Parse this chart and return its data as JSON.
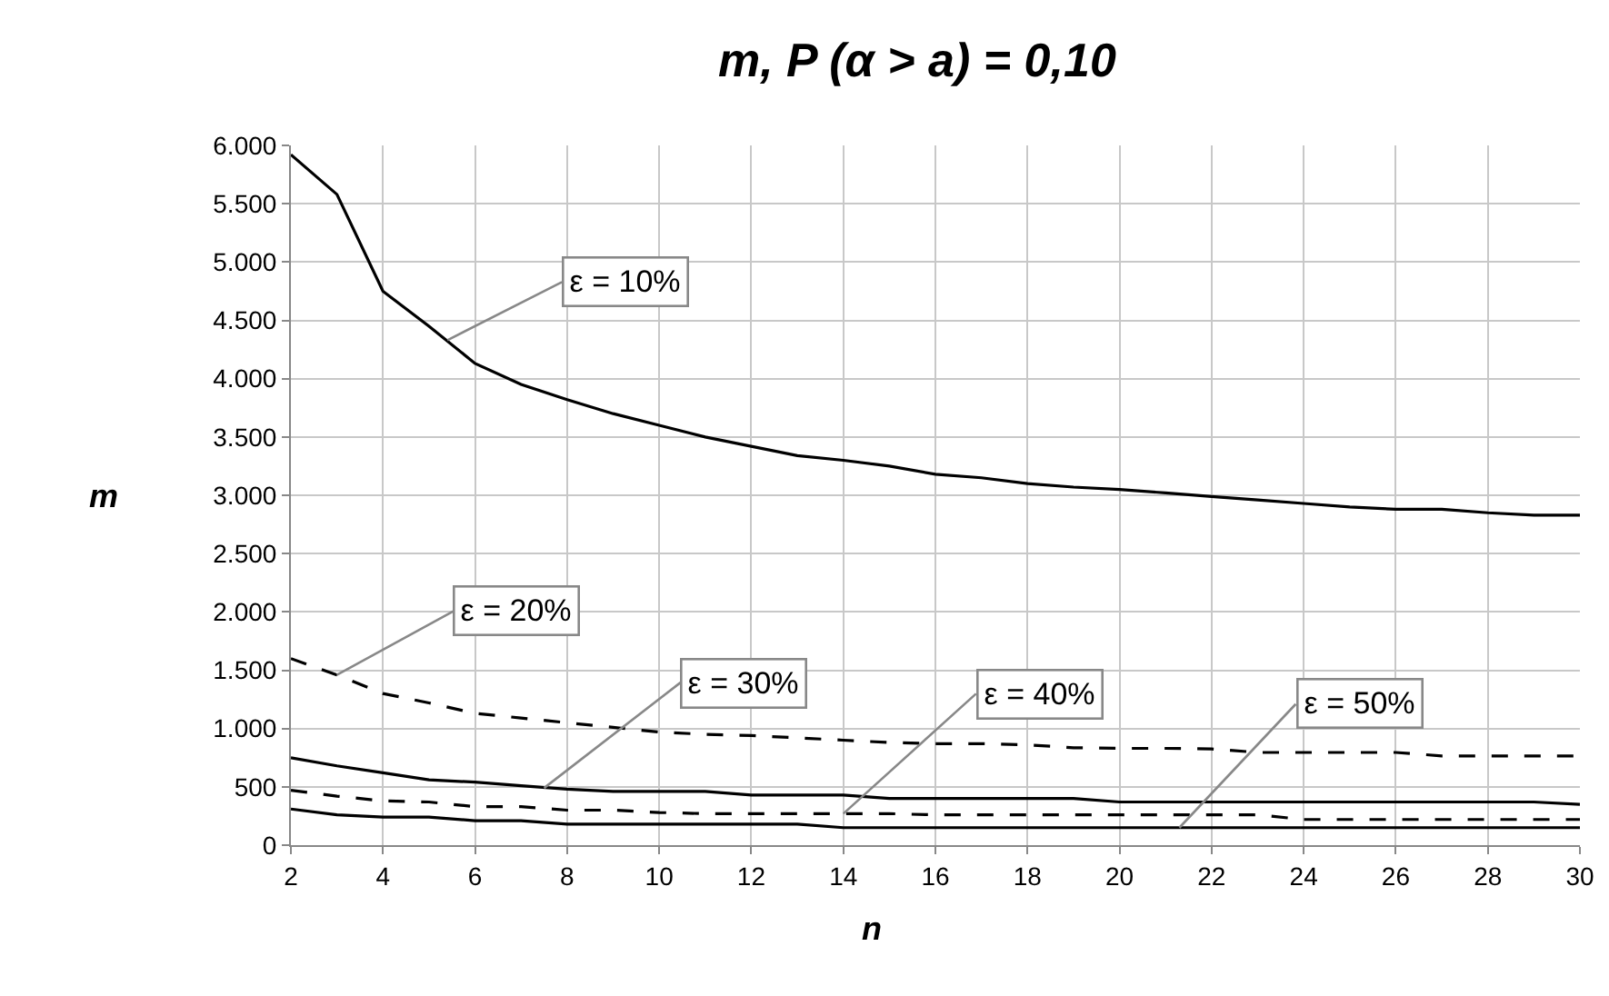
{
  "chart_data": {
    "type": "line",
    "title": "m, P (α > a) = 0,10",
    "xlabel": "n",
    "ylabel": "m",
    "x": [
      2,
      3,
      4,
      5,
      6,
      7,
      8,
      9,
      10,
      11,
      12,
      13,
      14,
      15,
      16,
      17,
      18,
      19,
      20,
      21,
      22,
      23,
      24,
      25,
      26,
      27,
      28,
      29,
      30
    ],
    "series": [
      {
        "color": "#000000",
        "line_style": "solid",
        "values": [
          5920,
          5580,
          4750,
          4450,
          4130,
          3950,
          3820,
          3700,
          3600,
          3500,
          3420,
          3340,
          3300,
          3250,
          3180,
          3150,
          3100,
          3070,
          3050,
          3020,
          2990,
          2960,
          2930,
          2900,
          2880,
          2880,
          2850,
          2830,
          2830
        ]
      },
      {
        "color": "#000000",
        "line_style": "dashed",
        "values": [
          1600,
          1460,
          1300,
          1220,
          1130,
          1090,
          1050,
          1010,
          970,
          950,
          940,
          920,
          900,
          880,
          870,
          870,
          860,
          835,
          830,
          830,
          825,
          795,
          795,
          795,
          795,
          765,
          765,
          765,
          765
        ]
      },
      {
        "color": "#000000",
        "line_style": "solid",
        "values": [
          750,
          680,
          620,
          560,
          540,
          510,
          480,
          460,
          460,
          460,
          430,
          430,
          430,
          400,
          400,
          400,
          400,
          400,
          370,
          370,
          370,
          370,
          370,
          370,
          370,
          370,
          370,
          370,
          350
        ]
      },
      {
        "color": "#000000",
        "line_style": "dashed",
        "values": [
          470,
          420,
          380,
          370,
          330,
          330,
          300,
          300,
          280,
          270,
          270,
          270,
          270,
          270,
          260,
          260,
          260,
          260,
          260,
          260,
          260,
          260,
          220,
          220,
          220,
          220,
          220,
          220,
          220
        ]
      },
      {
        "color": "#000000",
        "line_style": "solid",
        "values": [
          310,
          260,
          240,
          240,
          210,
          210,
          180,
          180,
          180,
          180,
          180,
          180,
          150,
          150,
          150,
          150,
          150,
          150,
          150,
          150,
          150,
          150,
          150,
          150,
          150,
          150,
          150,
          150,
          150
        ]
      }
    ],
    "annotations": [
      {
        "text": "ε = 10%",
        "x": 5.4,
        "y": 4330
      },
      {
        "text": "ε = 20%",
        "x": 3,
        "y": 1460
      },
      {
        "text": "ε = 30%",
        "x": 7.5,
        "y": 490
      },
      {
        "text": "ε = 40%",
        "x": 14,
        "y": 270
      },
      {
        "text": "ε = 50%",
        "x": 21.3,
        "y": 150
      }
    ],
    "xlim": [
      2,
      30
    ],
    "xticks": [
      2,
      4,
      6,
      8,
      10,
      12,
      14,
      16,
      18,
      20,
      22,
      24,
      26,
      28,
      30
    ],
    "ylim": [
      0,
      6000
    ],
    "yticks": [
      0,
      500,
      {
        "value": 1000,
        "label": "1.000"
      },
      {
        "value": 1500,
        "label": "1.500"
      },
      {
        "value": 2000,
        "label": "2.000"
      },
      {
        "value": 2500,
        "label": "2.500"
      },
      {
        "value": 3000,
        "label": "3.000"
      },
      {
        "value": 3500,
        "label": "3.500"
      },
      {
        "value": 4000,
        "label": "4.000"
      },
      {
        "value": 4500,
        "label": "4.500"
      },
      {
        "value": 5000,
        "label": "5.000"
      },
      {
        "value": 5500,
        "label": "5.500"
      },
      {
        "value": 6000,
        "label": "6.000"
      }
    ],
    "grid": true,
    "marker": "none"
  }
}
